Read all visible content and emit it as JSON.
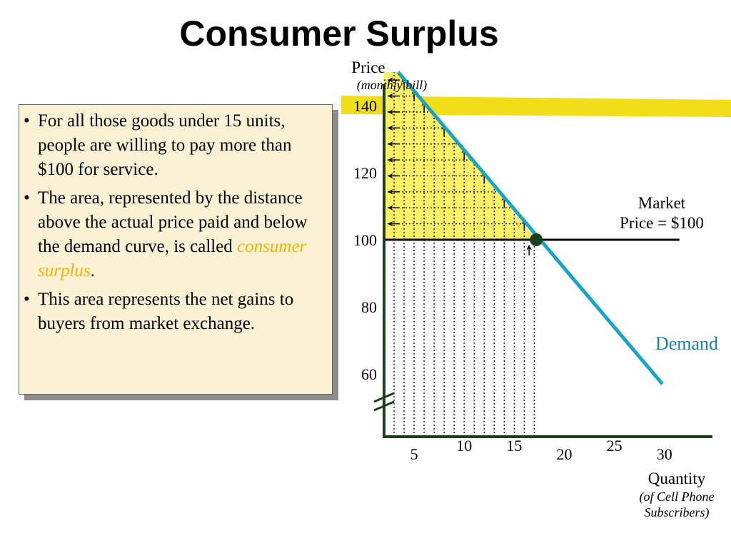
{
  "slide": {
    "title": "Consumer Surplus",
    "bullets": [
      {
        "text": "For all those goods under 15 units, people are willing to pay more than $100 for service."
      },
      {
        "text_before": "The area, represented by the distance above the actual price paid and below the demand curve, is called ",
        "highlight": "consumer surplus",
        "text_after": "."
      },
      {
        "text": "This area represents the net gains to buyers from market exchange."
      }
    ]
  },
  "colors": {
    "demand_line": "#1aa3c9",
    "surplus_fill": "#fff266",
    "highlight_band": "#f2dd1a",
    "highlight_text": "#f2b400",
    "panel_background": "#fbf1d4"
  },
  "chart_data": {
    "type": "line",
    "y_axis": {
      "label": "Price",
      "sublabel": "(monthly bill)",
      "ticks": [
        140,
        120,
        100,
        80,
        60
      ],
      "range": [
        52,
        152
      ]
    },
    "x_axis": {
      "label": "Quantity",
      "sublabel": "(of Cell Phone Subscribers)",
      "ticks": [
        5,
        10,
        15,
        20,
        25,
        30
      ],
      "range": [
        0,
        32
      ],
      "ticks_rendered": [
        "5",
        "10",
        "15",
        "20",
        "25",
        "30"
      ]
    },
    "axis_break": true,
    "series": [
      {
        "name": "Demand",
        "points": [
          [
            1.4,
            150
          ],
          [
            27.8,
            57
          ]
        ]
      }
    ],
    "market_price": {
      "label_line1": "Market",
      "label_line2": "Price = $100",
      "value": 100,
      "x_end": 29.5
    },
    "equilibrium": {
      "x": 15.2,
      "y": 100
    },
    "consumer_surplus_area": {
      "x_from": 0,
      "x_to": 15.2,
      "y_from": 100,
      "demand_top": 150
    },
    "highlight_band_price": 140
  }
}
